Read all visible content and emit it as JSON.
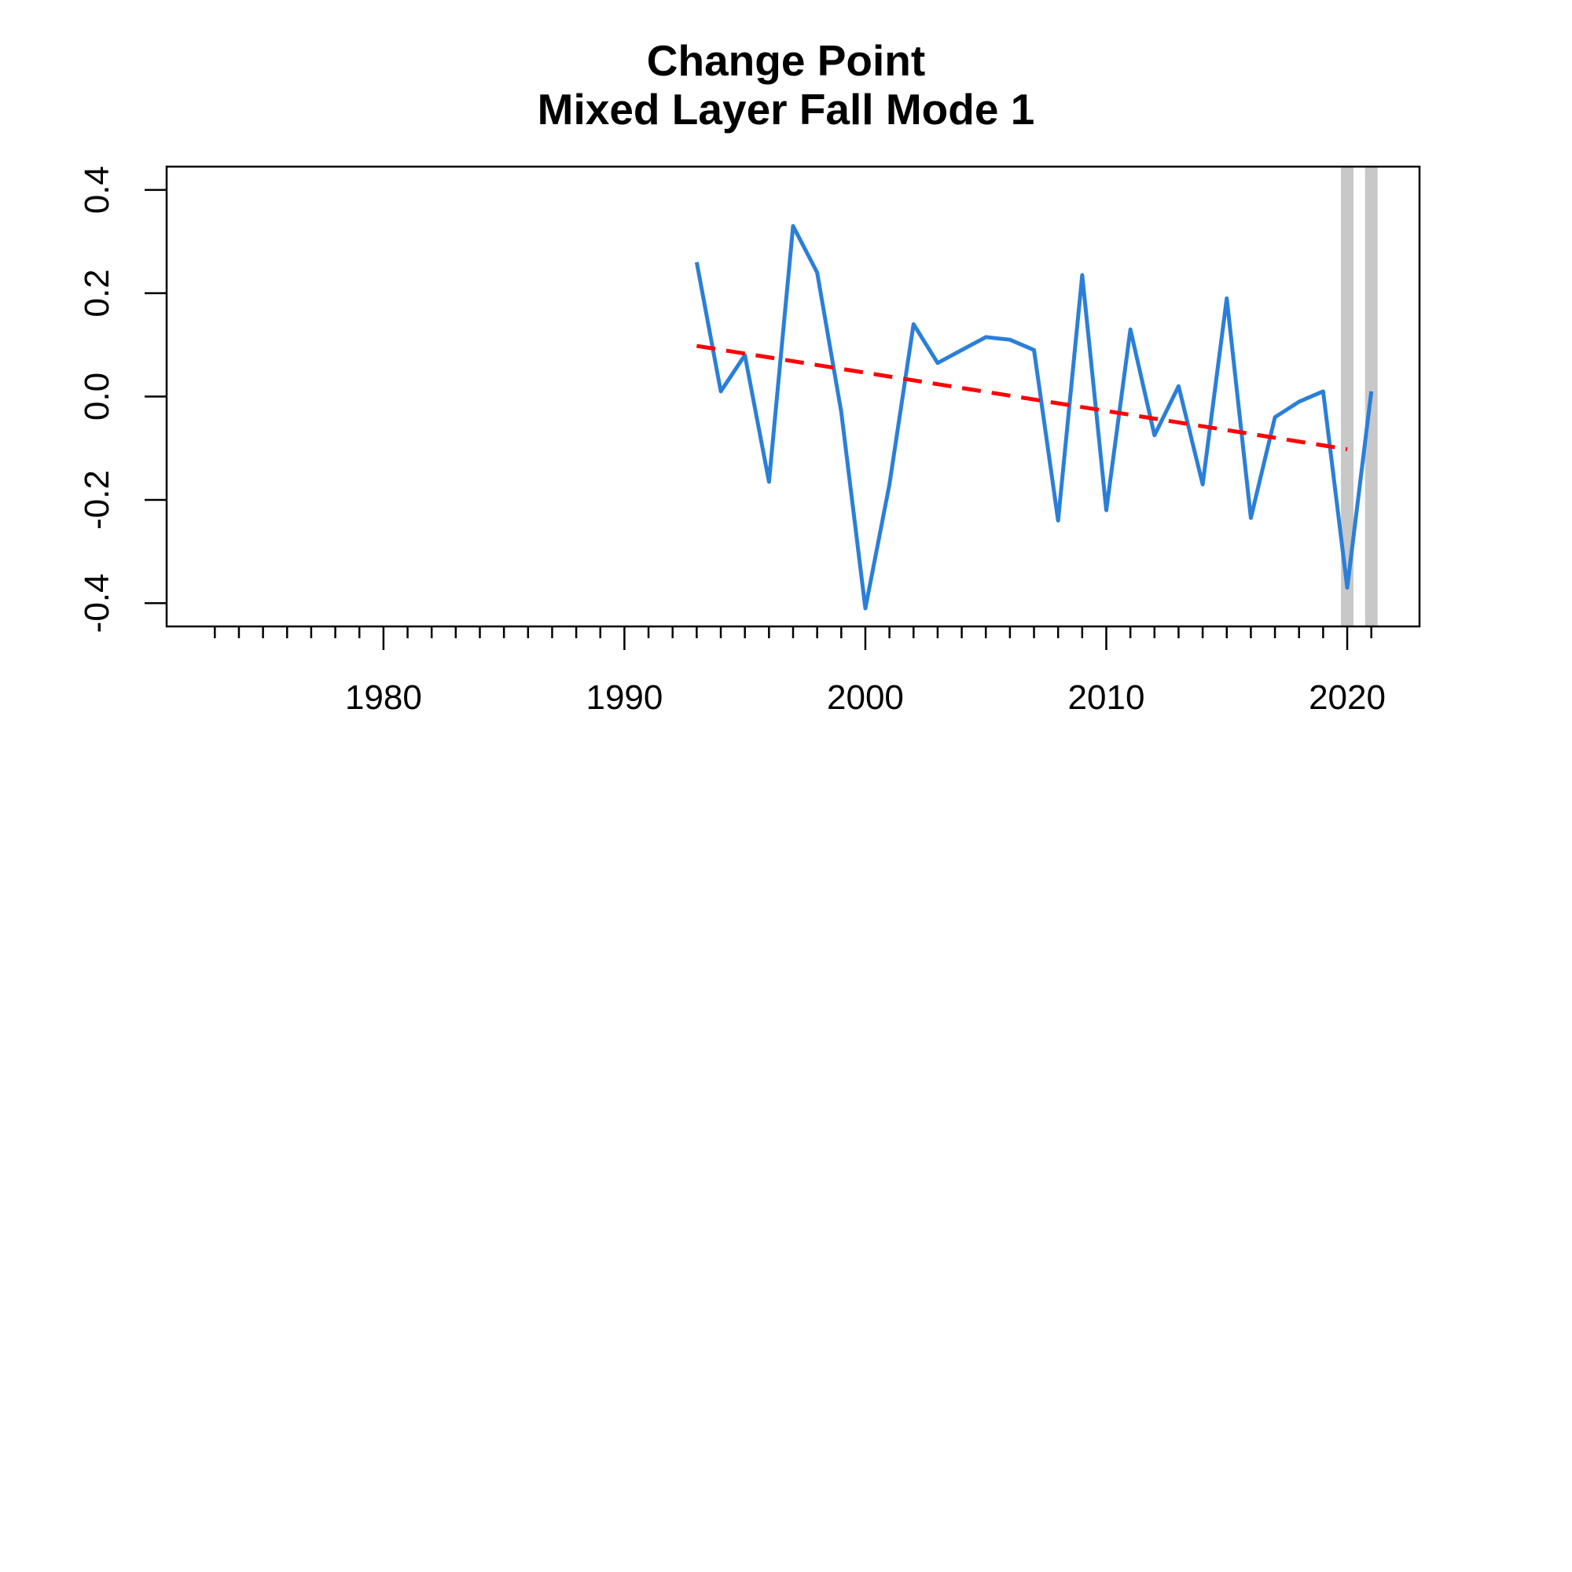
{
  "chart_data": {
    "type": "line",
    "title": "Change Point",
    "subtitle": "Mixed Layer Fall Mode 1",
    "xlabel": "",
    "ylabel": "",
    "xlim": [
      1971,
      2023
    ],
    "ylim": [
      -0.445,
      0.445
    ],
    "x_ticks_major": [
      1980,
      1990,
      2000,
      2010,
      2020
    ],
    "x_ticks_minor_start": 1973,
    "x_ticks_minor_end": 2021,
    "y_ticks": [
      -0.4,
      -0.2,
      0.0,
      0.2,
      0.4
    ],
    "y_tick_labels": [
      "-0.4",
      "-0.2",
      "0.0",
      "0.2",
      "0.4"
    ],
    "grid": false,
    "series": [
      {
        "color": "#2a7fd8",
        "style": "solid",
        "x": [
          1993,
          1994,
          1995,
          1996,
          1997,
          1998,
          1999,
          2000,
          2001,
          2002,
          2003,
          2004,
          2005,
          2006,
          2007,
          2008,
          2009,
          2010,
          2011,
          2012,
          2013,
          2014,
          2015,
          2016,
          2017,
          2018,
          2019,
          2020,
          2021
        ],
        "values": [
          0.26,
          0.01,
          0.08,
          -0.165,
          0.33,
          0.24,
          -0.03,
          -0.41,
          -0.17,
          0.14,
          0.065,
          0.09,
          0.115,
          0.11,
          0.09,
          -0.24,
          0.235,
          -0.22,
          0.13,
          -0.075,
          0.02,
          -0.17,
          0.19,
          -0.235,
          -0.04,
          -0.01,
          0.01,
          -0.37,
          0.01
        ]
      }
    ],
    "trend_line": {
      "color": "#ff0000",
      "style": "dashed",
      "x": [
        1993,
        2020
      ],
      "values": [
        0.098,
        -0.102
      ]
    },
    "change_points": {
      "color": "#c8c8c8",
      "x": [
        2020,
        2021
      ]
    }
  }
}
